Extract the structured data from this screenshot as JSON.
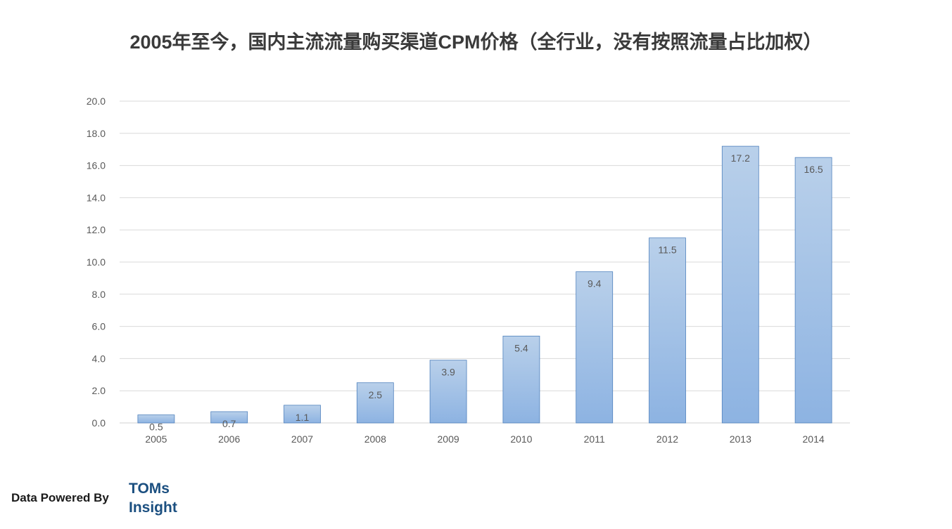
{
  "title": "2005年至今，国内主流流量购买渠道CPM价格（全行业，没有按照流量占比加权）",
  "footer": {
    "powered_by": "Data Powered By",
    "logo_line1": "TOMs",
    "logo_line2": "Insight"
  },
  "colors": {
    "bar_top": "#b9d0ea",
    "bar_bottom": "#8db3e2",
    "bar_stroke": "#4f81bd",
    "grid": "#d9d9d9",
    "axis_text": "#595959",
    "logo": "#1b4f80"
  },
  "chart_data": {
    "type": "bar",
    "title": "2005年至今，国内主流流量购买渠道CPM价格（全行业，没有按照流量占比加权）",
    "xlabel": "",
    "ylabel": "",
    "categories": [
      "2005",
      "2006",
      "2007",
      "2008",
      "2009",
      "2010",
      "2011",
      "2012",
      "2013",
      "2014"
    ],
    "values": [
      0.5,
      0.7,
      1.1,
      2.5,
      3.9,
      5.4,
      9.4,
      11.5,
      17.2,
      16.5
    ],
    "value_labels": [
      "0.5",
      "0.7",
      "1.1",
      "2.5",
      "3.9",
      "5.4",
      "9.4",
      "11.5",
      "17.2",
      "16.5"
    ],
    "ylim": [
      0,
      20
    ],
    "yticks": [
      "0.0",
      "2.0",
      "4.0",
      "6.0",
      "8.0",
      "10.0",
      "12.0",
      "14.0",
      "16.0",
      "18.0",
      "20.0"
    ],
    "grid": true,
    "legend": "none"
  }
}
